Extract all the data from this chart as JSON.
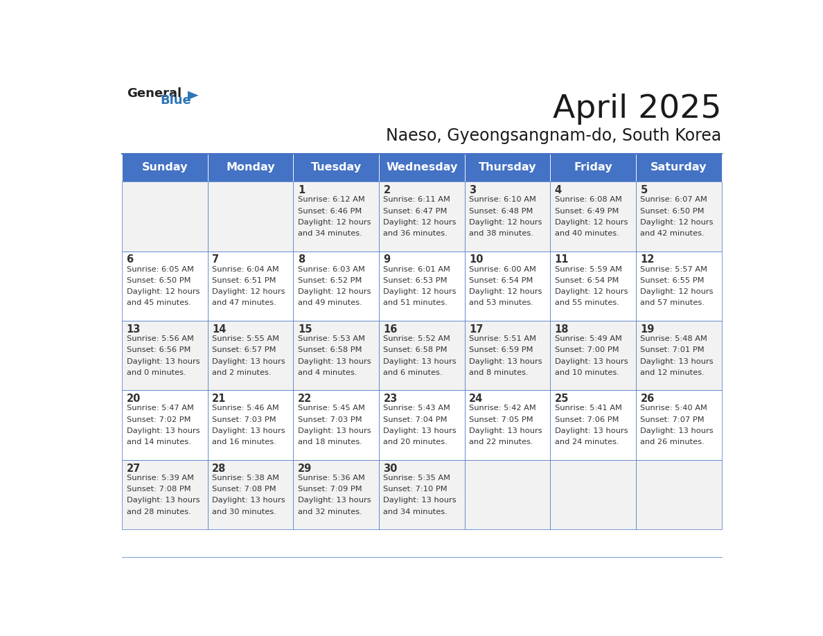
{
  "title": "April 2025",
  "subtitle": "Naeso, Gyeongsangnam-do, South Korea",
  "days_of_week": [
    "Sunday",
    "Monday",
    "Tuesday",
    "Wednesday",
    "Thursday",
    "Friday",
    "Saturday"
  ],
  "header_bg": "#4472C4",
  "header_text_color": "#FFFFFF",
  "cell_bg_odd": "#F2F2F2",
  "cell_bg_even": "#FFFFFF",
  "text_color": "#333333",
  "border_color": "#4472C4",
  "logo_general_color": "#222222",
  "logo_blue_color": "#2E75B6",
  "calendar": [
    [
      null,
      null,
      {
        "day": 1,
        "sunrise": "6:12 AM",
        "sunset": "6:46 PM",
        "daylight": "12 hours\nand 34 minutes."
      },
      {
        "day": 2,
        "sunrise": "6:11 AM",
        "sunset": "6:47 PM",
        "daylight": "12 hours\nand 36 minutes."
      },
      {
        "day": 3,
        "sunrise": "6:10 AM",
        "sunset": "6:48 PM",
        "daylight": "12 hours\nand 38 minutes."
      },
      {
        "day": 4,
        "sunrise": "6:08 AM",
        "sunset": "6:49 PM",
        "daylight": "12 hours\nand 40 minutes."
      },
      {
        "day": 5,
        "sunrise": "6:07 AM",
        "sunset": "6:50 PM",
        "daylight": "12 hours\nand 42 minutes."
      }
    ],
    [
      {
        "day": 6,
        "sunrise": "6:05 AM",
        "sunset": "6:50 PM",
        "daylight": "12 hours\nand 45 minutes."
      },
      {
        "day": 7,
        "sunrise": "6:04 AM",
        "sunset": "6:51 PM",
        "daylight": "12 hours\nand 47 minutes."
      },
      {
        "day": 8,
        "sunrise": "6:03 AM",
        "sunset": "6:52 PM",
        "daylight": "12 hours\nand 49 minutes."
      },
      {
        "day": 9,
        "sunrise": "6:01 AM",
        "sunset": "6:53 PM",
        "daylight": "12 hours\nand 51 minutes."
      },
      {
        "day": 10,
        "sunrise": "6:00 AM",
        "sunset": "6:54 PM",
        "daylight": "12 hours\nand 53 minutes."
      },
      {
        "day": 11,
        "sunrise": "5:59 AM",
        "sunset": "6:54 PM",
        "daylight": "12 hours\nand 55 minutes."
      },
      {
        "day": 12,
        "sunrise": "5:57 AM",
        "sunset": "6:55 PM",
        "daylight": "12 hours\nand 57 minutes."
      }
    ],
    [
      {
        "day": 13,
        "sunrise": "5:56 AM",
        "sunset": "6:56 PM",
        "daylight": "13 hours\nand 0 minutes."
      },
      {
        "day": 14,
        "sunrise": "5:55 AM",
        "sunset": "6:57 PM",
        "daylight": "13 hours\nand 2 minutes."
      },
      {
        "day": 15,
        "sunrise": "5:53 AM",
        "sunset": "6:58 PM",
        "daylight": "13 hours\nand 4 minutes."
      },
      {
        "day": 16,
        "sunrise": "5:52 AM",
        "sunset": "6:58 PM",
        "daylight": "13 hours\nand 6 minutes."
      },
      {
        "day": 17,
        "sunrise": "5:51 AM",
        "sunset": "6:59 PM",
        "daylight": "13 hours\nand 8 minutes."
      },
      {
        "day": 18,
        "sunrise": "5:49 AM",
        "sunset": "7:00 PM",
        "daylight": "13 hours\nand 10 minutes."
      },
      {
        "day": 19,
        "sunrise": "5:48 AM",
        "sunset": "7:01 PM",
        "daylight": "13 hours\nand 12 minutes."
      }
    ],
    [
      {
        "day": 20,
        "sunrise": "5:47 AM",
        "sunset": "7:02 PM",
        "daylight": "13 hours\nand 14 minutes."
      },
      {
        "day": 21,
        "sunrise": "5:46 AM",
        "sunset": "7:03 PM",
        "daylight": "13 hours\nand 16 minutes."
      },
      {
        "day": 22,
        "sunrise": "5:45 AM",
        "sunset": "7:03 PM",
        "daylight": "13 hours\nand 18 minutes."
      },
      {
        "day": 23,
        "sunrise": "5:43 AM",
        "sunset": "7:04 PM",
        "daylight": "13 hours\nand 20 minutes."
      },
      {
        "day": 24,
        "sunrise": "5:42 AM",
        "sunset": "7:05 PM",
        "daylight": "13 hours\nand 22 minutes."
      },
      {
        "day": 25,
        "sunrise": "5:41 AM",
        "sunset": "7:06 PM",
        "daylight": "13 hours\nand 24 minutes."
      },
      {
        "day": 26,
        "sunrise": "5:40 AM",
        "sunset": "7:07 PM",
        "daylight": "13 hours\nand 26 minutes."
      }
    ],
    [
      {
        "day": 27,
        "sunrise": "5:39 AM",
        "sunset": "7:08 PM",
        "daylight": "13 hours\nand 28 minutes."
      },
      {
        "day": 28,
        "sunrise": "5:38 AM",
        "sunset": "7:08 PM",
        "daylight": "13 hours\nand 30 minutes."
      },
      {
        "day": 29,
        "sunrise": "5:36 AM",
        "sunset": "7:09 PM",
        "daylight": "13 hours\nand 32 minutes."
      },
      {
        "day": 30,
        "sunrise": "5:35 AM",
        "sunset": "7:10 PM",
        "daylight": "13 hours\nand 34 minutes."
      },
      null,
      null,
      null
    ]
  ]
}
